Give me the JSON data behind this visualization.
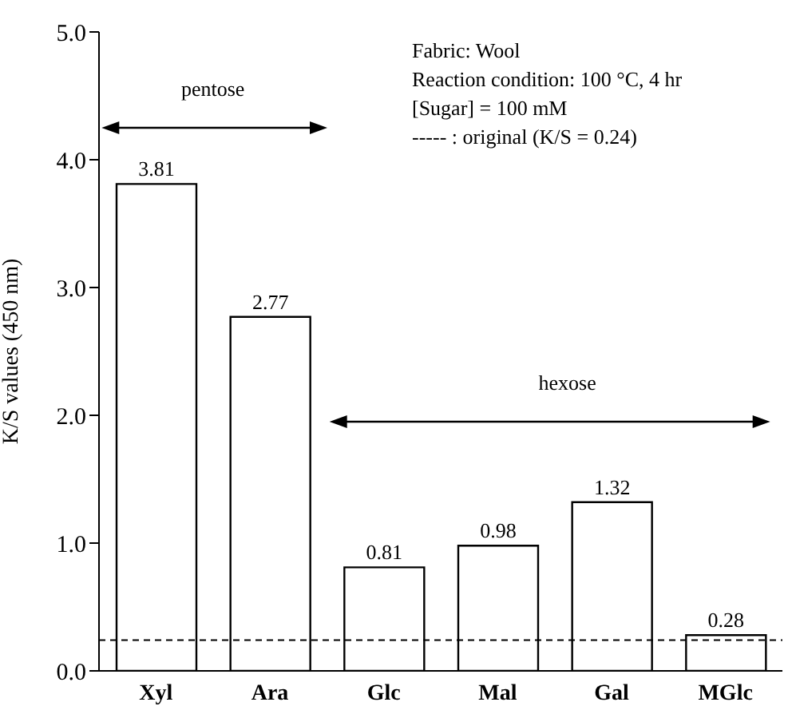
{
  "chart_data": {
    "type": "bar",
    "ylabel": "K/S values (450 nm)",
    "categories": [
      "Xyl",
      "Ara",
      "Glc",
      "Mal",
      "Gal",
      "MGlc"
    ],
    "values": [
      3.81,
      2.77,
      0.81,
      0.98,
      1.32,
      0.28
    ],
    "color": "#ffffff",
    "data_labels": true,
    "ylim": [
      0,
      5
    ],
    "yticks": [
      {
        "value": 0,
        "label": "0.0"
      },
      {
        "value": 1,
        "label": "1.0"
      },
      {
        "value": 2,
        "label": "2.0"
      },
      {
        "value": 3,
        "label": "3.0"
      },
      {
        "value": 4,
        "label": "4.0"
      },
      {
        "value": 5,
        "label": "5.0"
      }
    ],
    "ref_lines": [
      {
        "axis": "y",
        "value": 0.24,
        "line_style": "dashed",
        "color": "#000000"
      }
    ],
    "annotations": [
      "Fabric: Wool",
      "Reaction condition: 100 °C, 4 hr",
      "[Sugar] = 100 mM",
      "----- : original (K/S = 0.24)",
      "pentose",
      "hexose"
    ],
    "grid": false,
    "legend": false
  }
}
